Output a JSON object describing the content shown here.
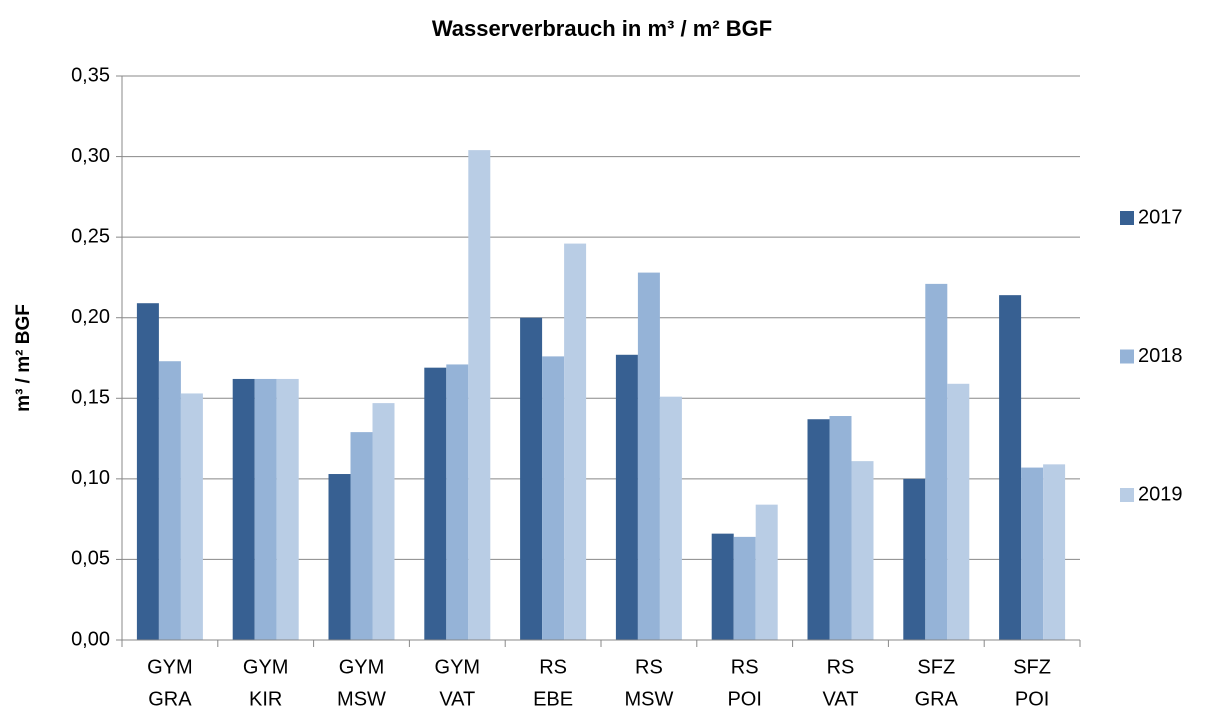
{
  "chart_data": {
    "type": "bar",
    "title": "Wasserverbrauch in m³ / m² BGF",
    "y_label": "m³ / m² BGF",
    "categories": [
      [
        "GYM",
        "GRA"
      ],
      [
        "GYM",
        "KIR"
      ],
      [
        "GYM",
        "MSW"
      ],
      [
        "GYM",
        "VAT"
      ],
      [
        "RS",
        "EBE"
      ],
      [
        "RS",
        "MSW"
      ],
      [
        "RS",
        "POI"
      ],
      [
        "RS",
        "VAT"
      ],
      [
        "SFZ",
        "GRA"
      ],
      [
        "SFZ",
        "POI"
      ]
    ],
    "series": [
      {
        "name": "2017",
        "color": "#376092",
        "values": [
          0.209,
          0.162,
          0.103,
          0.169,
          0.2,
          0.177,
          0.066,
          0.137,
          0.1,
          0.214
        ]
      },
      {
        "name": "2018",
        "color": "#95b3d7",
        "values": [
          0.173,
          0.162,
          0.129,
          0.171,
          0.176,
          0.228,
          0.064,
          0.139,
          0.221,
          0.107
        ]
      },
      {
        "name": "2019",
        "color": "#b9cde5",
        "values": [
          0.153,
          0.162,
          0.147,
          0.304,
          0.246,
          0.151,
          0.084,
          0.111,
          0.159,
          0.109
        ]
      }
    ],
    "ylim": [
      0,
      0.35
    ],
    "yticks": [
      {
        "value": 0,
        "label": "0,00"
      },
      {
        "value": 0.05,
        "label": "0,05"
      },
      {
        "value": 0.1,
        "label": "0,10"
      },
      {
        "value": 0.15,
        "label": "0,15"
      },
      {
        "value": 0.2,
        "label": "0,20"
      },
      {
        "value": 0.25,
        "label": "0,25"
      },
      {
        "value": 0.3,
        "label": "0,30"
      },
      {
        "value": 0.35,
        "label": "0,35"
      }
    ],
    "grid": true,
    "legend": "right"
  }
}
